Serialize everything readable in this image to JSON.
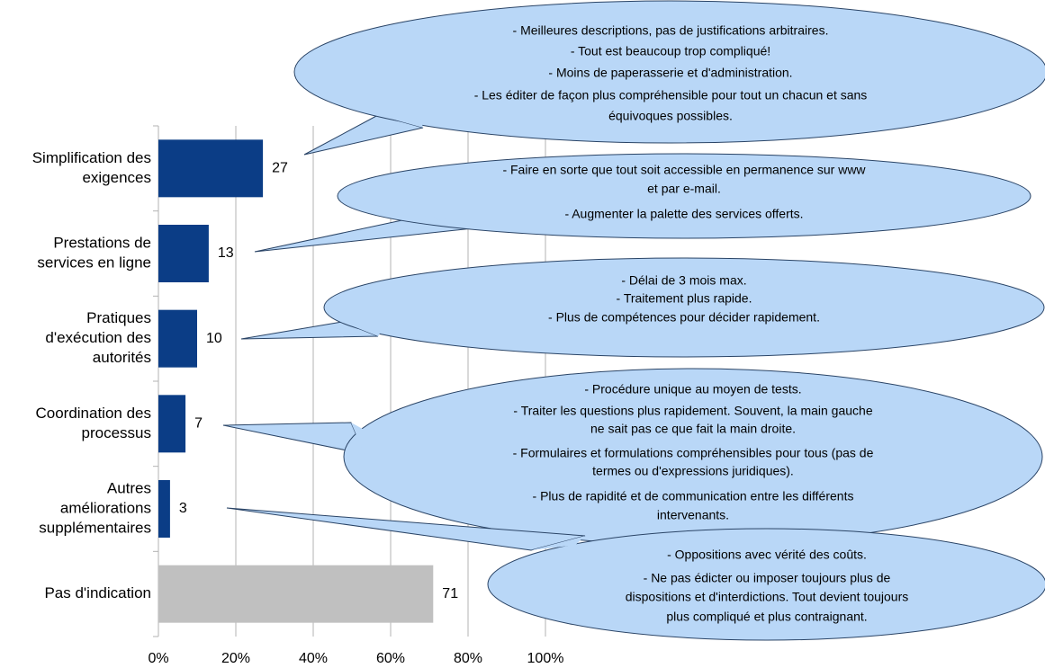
{
  "chart_data": {
    "type": "bar",
    "orientation": "horizontal",
    "categories": [
      [
        "Simplification des",
        "exigences"
      ],
      [
        "Prestations de",
        "services en ligne"
      ],
      [
        "Pratiques",
        "d'exécution des",
        "autorités"
      ],
      [
        "Coordination des",
        "processus"
      ],
      [
        "Autres",
        "améliorations",
        "supplémentaires"
      ],
      [
        "Pas d'indication"
      ]
    ],
    "values": [
      27,
      13,
      10,
      7,
      3,
      71
    ],
    "colors": [
      "#0b3d86",
      "#0b3d86",
      "#0b3d86",
      "#0b3d86",
      "#0b3d86",
      "#c0c0c0"
    ],
    "xlim": [
      0,
      100
    ],
    "xticks": [
      {
        "value": 0,
        "label": "0%"
      },
      {
        "value": 20,
        "label": "20%"
      },
      {
        "value": 40,
        "label": "40%"
      },
      {
        "value": 60,
        "label": "60%"
      },
      {
        "value": 80,
        "label": "80%"
      },
      {
        "value": 100,
        "label": "100%"
      }
    ],
    "grid": true,
    "annotations": [
      [
        "- Meilleures descriptions, pas de justifications arbitraires.",
        "- Tout est beaucoup trop compliqué!",
        "- Moins de paperasserie et d'administration.",
        "- Les éditer de façon plus compréhensible pour tout un chacun et sans",
        "équivoques possibles."
      ],
      [
        "- Faire en sorte que tout soit accessible en permanence sur www",
        "et par e-mail.",
        "- Augmenter la palette des services offerts."
      ],
      [
        "- Délai de 3 mois max.",
        "- Traitement plus rapide.",
        "- Plus de compétences pour décider rapidement."
      ],
      [
        "- Procédure unique au moyen de tests.",
        "- Traiter les questions plus rapidement. Souvent, la main gauche",
        "ne sait pas ce que fait la main droite.",
        "- Formulaires et formulations compréhensibles pour tous (pas de",
        "termes ou d'expressions juridiques).",
        "- Plus de rapidité et de communication entre les différents",
        "intervenants."
      ],
      [
        "- Oppositions avec vérité des coûts.",
        "- Ne pas édicter ou imposer toujours plus de",
        "dispositions et d'interdictions. Tout devient toujours",
        "plus compliqué et plus contraignant."
      ]
    ]
  }
}
